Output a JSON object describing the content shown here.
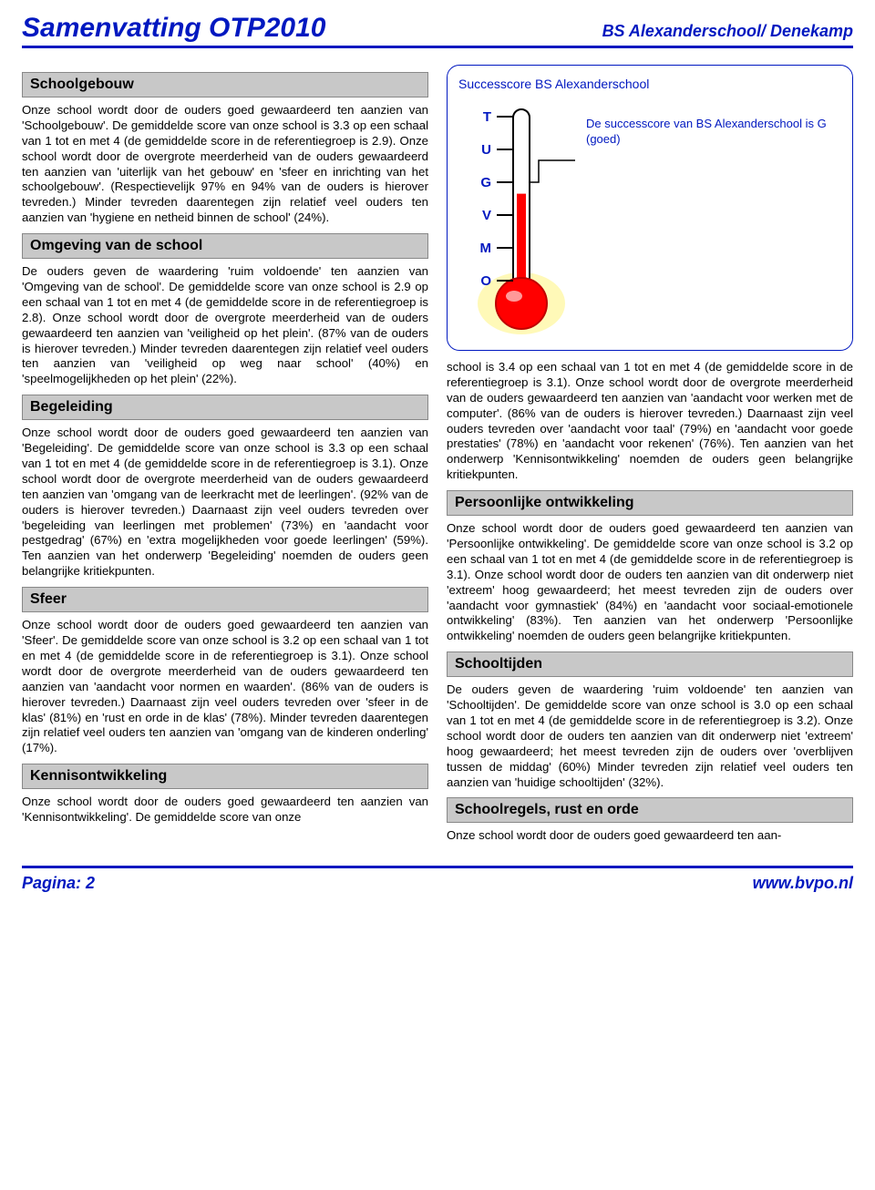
{
  "header": {
    "title": "Samenvatting OTP2010",
    "subtitle": "BS Alexanderschool/ Denekamp"
  },
  "sections": {
    "schoolgebouw": {
      "heading": "Schoolgebouw",
      "body": "Onze school wordt door de ouders goed gewaardeerd ten aanzien van 'Schoolgebouw'. De gemiddelde score van onze school is 3.3 op een schaal van 1 tot en met 4 (de gemiddelde score in de referentiegroep is 2.9).\nOnze school wordt door de overgrote meerderheid van de ouders gewaardeerd ten aanzien van 'uiterlijk van het gebouw' en 'sfeer en inrichting van het schoolgebouw'. (Respectievelijk 97% en 94% van de ouders is hierover tevreden.)\nMinder tevreden daarentegen zijn relatief veel ouders ten aanzien van 'hygiene en netheid binnen de school' (24%)."
    },
    "omgeving": {
      "heading": "Omgeving van de school",
      "body": "De ouders geven de waardering 'ruim voldoende' ten aanzien van 'Omgeving van de school'. De gemiddelde score van onze school is 2.9 op een schaal van 1 tot en met 4 (de gemiddelde score in de referentiegroep is 2.8).\nOnze school wordt door de overgrote meerderheid van de ouders gewaardeerd ten aanzien van 'veiligheid op het plein'. (87% van de ouders is hierover tevreden.)\nMinder tevreden daarentegen zijn relatief veel ouders ten aanzien van 'veiligheid op weg naar school' (40%) en 'speelmogelijkheden op het plein' (22%)."
    },
    "begeleiding": {
      "heading": "Begeleiding",
      "body": "Onze school wordt door de ouders goed gewaardeerd ten aanzien van 'Begeleiding'. De gemiddelde score van onze school is 3.3 op een schaal van 1 tot en met 4 (de gemiddelde score in de referentiegroep is 3.1).\nOnze school wordt door de overgrote meerderheid van de ouders gewaardeerd ten aanzien van 'omgang van de leerkracht met de leerlingen'. (92% van de ouders is hierover tevreden.) Daarnaast zijn veel ouders tevreden over 'begeleiding van leerlingen met problemen' (73%) en 'aandacht voor pestgedrag' (67%) en 'extra mogelijkheden voor goede leerlingen' (59%). Ten aanzien van het onderwerp 'Begeleiding' noemden de ouders geen belangrijke kritiekpunten."
    },
    "sfeer": {
      "heading": "Sfeer",
      "body": "Onze school wordt door de ouders goed gewaardeerd ten aanzien van 'Sfeer'. De gemiddelde score van onze school is 3.2 op een schaal van 1 tot en met 4 (de gemiddelde score in de referentiegroep is 3.1).\nOnze school wordt door de overgrote meerderheid van de ouders gewaardeerd ten aanzien van 'aandacht voor normen en waarden'. (86% van de ouders is hierover tevreden.) Daarnaast zijn veel ouders tevreden over 'sfeer in de klas' (81%) en 'rust en orde in de klas' (78%).\nMinder tevreden daarentegen zijn relatief veel ouders ten aanzien van 'omgang van de kinderen onderling' (17%)."
    },
    "kennis": {
      "heading": "Kennisontwikkeling",
      "body_left": "Onze school wordt door de ouders goed gewaardeerd ten aanzien van 'Kennisontwikkeling'. De gemiddelde score van onze",
      "body_right": "school is 3.4 op een schaal van 1 tot en met 4 (de gemiddelde score in de referentiegroep is 3.1).\nOnze school wordt door de overgrote meerderheid van de ouders gewaardeerd ten aanzien van 'aandacht voor werken met de computer'. (86% van de ouders is hierover tevreden.) Daarnaast zijn veel ouders tevreden over 'aandacht voor taal' (79%) en 'aandacht voor goede prestaties' (78%) en 'aandacht voor rekenen' (76%).\nTen aanzien van het onderwerp 'Kennisontwikkeling' noemden de ouders geen belangrijke kritiekpunten."
    },
    "persoonlijk": {
      "heading": "Persoonlijke ontwikkeling",
      "body": "Onze school wordt door de ouders goed gewaardeerd ten aanzien van 'Persoonlijke ontwikkeling'. De gemiddelde score van onze school is 3.2 op een schaal van 1 tot en met 4 (de gemiddelde score in de referentiegroep is 3.1).\nOnze school wordt door de ouders ten aanzien van dit onderwerp niet 'extreem' hoog gewaardeerd; het meest tevreden zijn de ouders over 'aandacht voor gymnastiek' (84%) en 'aandacht voor sociaal-emotionele ontwikkeling' (83%).\nTen aanzien van het onderwerp 'Persoonlijke ontwikkeling' noemden de ouders geen belangrijke kritiekpunten."
    },
    "schooltijden": {
      "heading": "Schooltijden",
      "body": "De ouders geven de waardering 'ruim voldoende' ten aanzien van 'Schooltijden'. De gemiddelde score van onze school is 3.0 op een schaal van 1 tot en met 4 (de gemiddelde score in de referentiegroep is 3.2).\nOnze school wordt door de ouders ten aanzien van dit onderwerp niet 'extreem' hoog gewaardeerd; het meest tevreden zijn de ouders over 'overblijven tussen de middag' (60%)\nMinder tevreden zijn relatief veel ouders ten aanzien van 'huidige schooltijden' (32%)."
    },
    "schoolregels": {
      "heading": "Schoolregels, rust en orde",
      "body": "Onze school wordt door de ouders goed gewaardeerd ten aan-"
    }
  },
  "thermometer": {
    "title": "Successcore BS Alexanderschool",
    "caption": "De successcore van BS Alexanderschool is G (goed)",
    "scale_labels": [
      "T",
      "U",
      "G",
      "V",
      "M",
      "O"
    ],
    "fill_level_index": 2,
    "colors": {
      "tube_border": "#000000",
      "fluid": "#ff0000",
      "bulb_outline": "#c00000",
      "label": "#0018c0",
      "glow": "#fff8b0",
      "tick": "#000000"
    }
  },
  "footer": {
    "page_label": "Pagina: 2",
    "site": "www.bvpo.nl"
  }
}
